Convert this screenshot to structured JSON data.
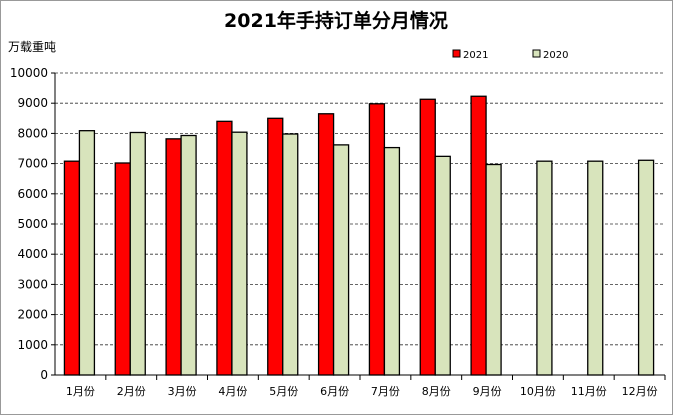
{
  "chart_data": {
    "type": "bar",
    "title": "2021年手持订单分月情况",
    "ylabel": "万载重吨",
    "xlabel": "",
    "ylim": [
      0,
      10000
    ],
    "yticks": [
      0,
      1000,
      2000,
      3000,
      4000,
      5000,
      6000,
      7000,
      8000,
      9000,
      10000
    ],
    "grid": true,
    "legend_position": "top-right",
    "categories": [
      "1月份",
      "2月份",
      "3月份",
      "4月份",
      "5月份",
      "6月份",
      "7月份",
      "8月份",
      "9月份",
      "10月份",
      "11月份",
      "12月份"
    ],
    "series": [
      {
        "name": "2021",
        "color": "#ff0000",
        "values": [
          7080,
          7020,
          7820,
          8400,
          8500,
          8650,
          8980,
          9130,
          9230,
          null,
          null,
          null
        ]
      },
      {
        "name": "2020",
        "color": "#d8e4bc",
        "values": [
          8090,
          8030,
          7930,
          8040,
          7980,
          7620,
          7530,
          7240,
          6970,
          7080,
          7080,
          7110
        ]
      }
    ]
  }
}
